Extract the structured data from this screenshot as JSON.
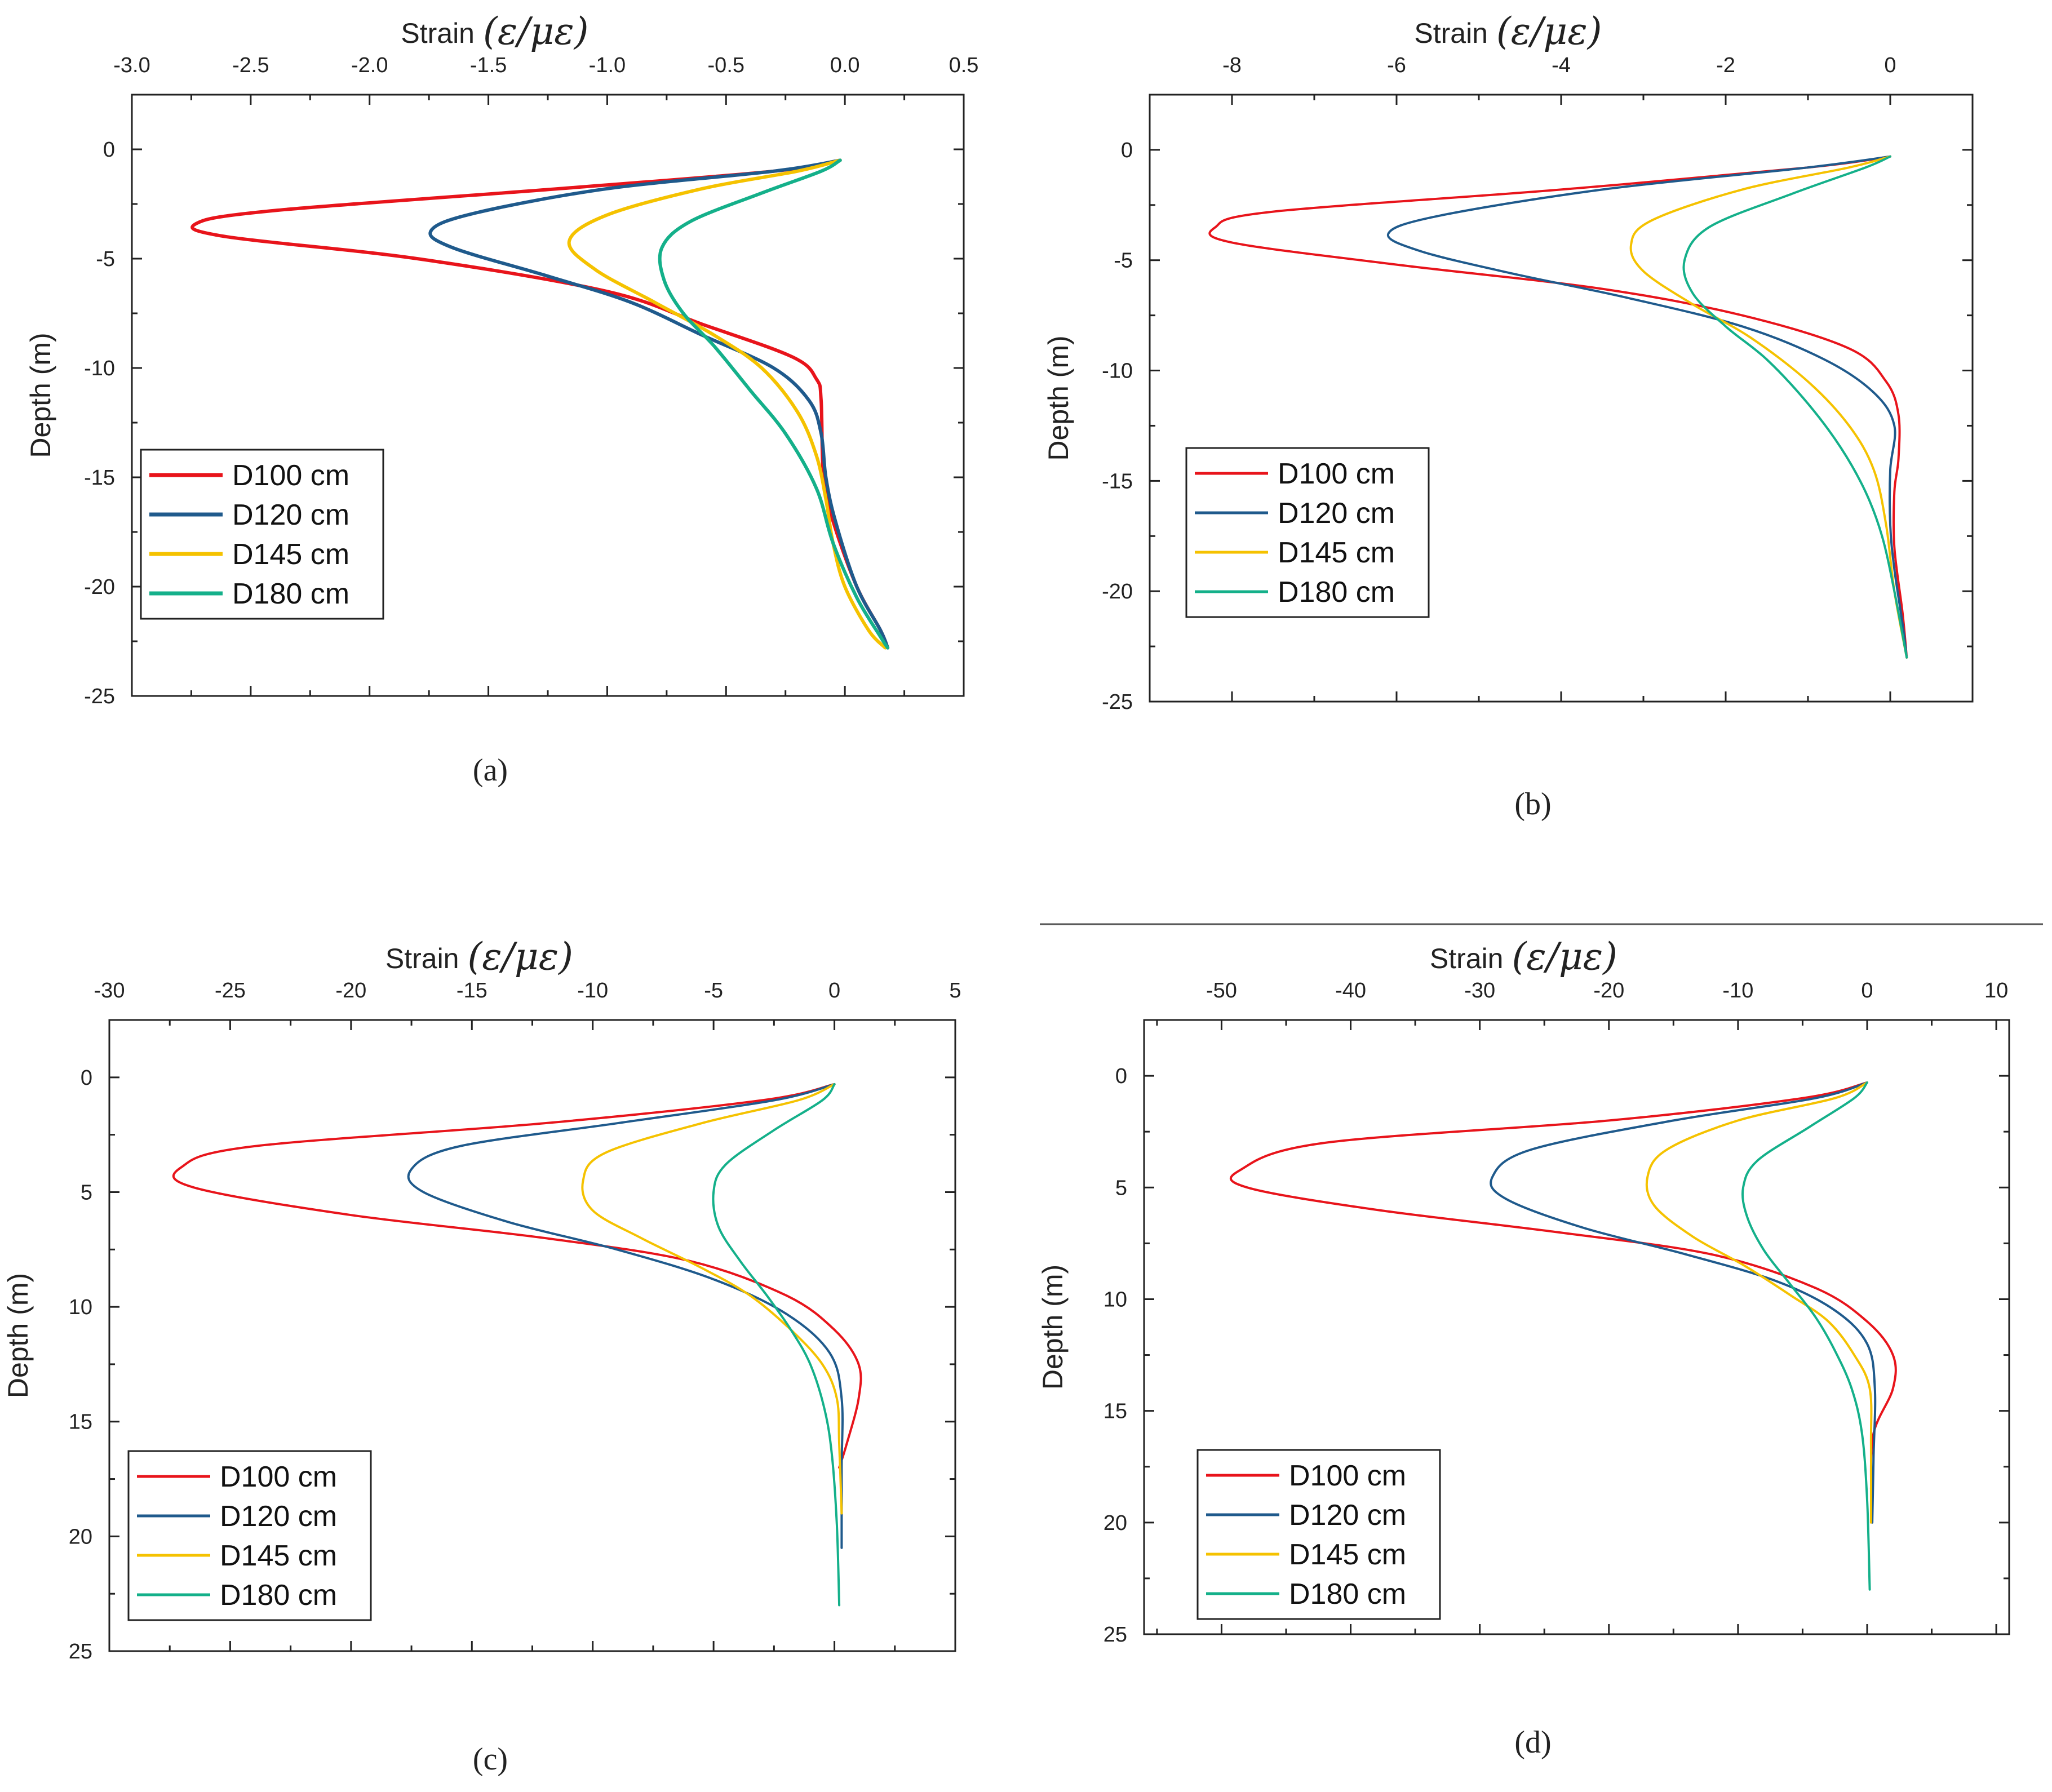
{
  "figure": {
    "separator": true
  },
  "chart_data": [
    {
      "id": "a",
      "type": "line",
      "caption": "(a)",
      "xlabel": "Strain",
      "xlabel_math": "(ε/μ_ε)",
      "xlabel_math_display": "(ε/με)",
      "ylabel": "Depth (m)",
      "xlim": [
        -3.0,
        0.5
      ],
      "ylim": [
        -25,
        2.5
      ],
      "y_inverted": false,
      "x_axis_position": "top",
      "xticks": [
        -3.0,
        -2.5,
        -2.0,
        -1.5,
        -1.0,
        -0.5,
        0.0,
        0.5
      ],
      "xtick_labels": [
        "-3.0",
        "-2.5",
        "-2.0",
        "-1.5",
        "-1.0",
        "-0.5",
        "0.0",
        "0.5"
      ],
      "yticks": [
        0,
        -5,
        -10,
        -15,
        -20,
        -25
      ],
      "ytick_labels": [
        "0",
        "-5",
        "-10",
        "-15",
        "-20",
        "-25"
      ],
      "grid": false,
      "legend_position": "bottom-left",
      "series": [
        {
          "name": "D100 cm",
          "color": "#e8141b",
          "x": [
            -0.02,
            -0.3,
            -1.2,
            -2.4,
            -2.73,
            -2.6,
            -1.8,
            -1.0,
            -0.6,
            -0.22,
            -0.12,
            -0.1,
            -0.09,
            -0.05,
            0.05,
            0.15,
            0.18
          ],
          "y": [
            -0.5,
            -1.0,
            -1.8,
            -2.8,
            -3.4,
            -4.0,
            -5.0,
            -6.5,
            -8.0,
            -9.5,
            -10.5,
            -11.5,
            -15.0,
            -17.0,
            -20.0,
            -22.0,
            -22.8
          ]
        },
        {
          "name": "D120 cm",
          "color": "#1f5a8c",
          "x": [
            -0.02,
            -0.3,
            -1.0,
            -1.55,
            -1.74,
            -1.65,
            -1.25,
            -0.9,
            -0.6,
            -0.3,
            -0.15,
            -0.1,
            -0.08,
            -0.04,
            0.05,
            0.15,
            0.18
          ],
          "y": [
            -0.5,
            -1.0,
            -1.8,
            -2.9,
            -3.7,
            -4.5,
            -5.8,
            -7.0,
            -8.5,
            -10.0,
            -11.5,
            -13.0,
            -15.0,
            -17.0,
            -20.0,
            -22.0,
            -22.8
          ]
        },
        {
          "name": "D145 cm",
          "color": "#f5c200",
          "x": [
            -0.02,
            -0.2,
            -0.6,
            -1.0,
            -1.16,
            -1.05,
            -0.8,
            -0.55,
            -0.35,
            -0.2,
            -0.12,
            -0.08,
            -0.05,
            0.0,
            0.1,
            0.17
          ],
          "y": [
            -0.5,
            -1.0,
            -1.8,
            -3.0,
            -4.2,
            -5.5,
            -7.0,
            -8.5,
            -10.0,
            -12.0,
            -14.0,
            -16.0,
            -18.0,
            -20.0,
            -22.0,
            -22.8
          ]
        },
        {
          "name": "D180 cm",
          "color": "#14b08a",
          "x": [
            -0.02,
            -0.1,
            -0.35,
            -0.65,
            -0.77,
            -0.76,
            -0.68,
            -0.55,
            -0.4,
            -0.25,
            -0.12,
            -0.05,
            0.05,
            0.15,
            0.18
          ],
          "y": [
            -0.5,
            -1.0,
            -2.0,
            -3.3,
            -4.5,
            -6.0,
            -7.5,
            -9.0,
            -11.0,
            -13.0,
            -15.5,
            -18.0,
            -20.5,
            -22.3,
            -22.8
          ]
        }
      ]
    },
    {
      "id": "b",
      "type": "line",
      "caption": "(b)",
      "xlabel": "Strain",
      "xlabel_math": "(ε/μ_ε)",
      "xlabel_math_display": "(ε/με)",
      "ylabel": "Depth (m)",
      "xlim": [
        -9.0,
        1.0
      ],
      "ylim": [
        -25,
        2.5
      ],
      "y_inverted": false,
      "x_axis_position": "top",
      "xticks": [
        -8,
        -6,
        -4,
        -2,
        0
      ],
      "xtick_labels": [
        "-8",
        "-6",
        "-4",
        "-2",
        "0"
      ],
      "yticks": [
        0,
        -5,
        -10,
        -15,
        -20,
        -25
      ],
      "ytick_labels": [
        "0",
        "-5",
        "-10",
        "-15",
        "-20",
        "-25"
      ],
      "grid": false,
      "legend_position": "bottom-left",
      "series": [
        {
          "name": "D100 cm",
          "color": "#e8141b",
          "x": [
            0.0,
            -1.0,
            -4.0,
            -7.5,
            -8.2,
            -8.0,
            -6.0,
            -3.5,
            -1.8,
            -0.5,
            -0.05,
            0.1,
            0.1,
            0.05,
            0.05,
            0.15,
            0.2
          ],
          "y": [
            -0.3,
            -0.8,
            -1.8,
            -2.8,
            -3.5,
            -4.2,
            -5.2,
            -6.3,
            -7.5,
            -9.0,
            -10.5,
            -12.0,
            -14.0,
            -15.5,
            -18.0,
            -21.0,
            -23.0
          ]
        },
        {
          "name": "D120 cm",
          "color": "#1f5a8c",
          "x": [
            0.0,
            -1.0,
            -3.5,
            -5.5,
            -6.1,
            -5.7,
            -4.6,
            -3.2,
            -1.8,
            -0.8,
            -0.2,
            0.05,
            0.0,
            0.0,
            0.05,
            0.15,
            0.2
          ],
          "y": [
            -0.3,
            -0.8,
            -1.8,
            -3.0,
            -3.8,
            -4.6,
            -5.6,
            -6.7,
            -8.0,
            -9.5,
            -11.0,
            -12.5,
            -14.5,
            -17.0,
            -19.0,
            -21.5,
            -23.0
          ]
        },
        {
          "name": "D145 cm",
          "color": "#f5c200",
          "x": [
            0.0,
            -0.5,
            -1.8,
            -2.9,
            -3.15,
            -3.0,
            -2.4,
            -1.7,
            -1.0,
            -0.5,
            -0.2,
            -0.05,
            0.05,
            0.2
          ],
          "y": [
            -0.3,
            -0.8,
            -1.8,
            -3.2,
            -4.3,
            -5.5,
            -7.0,
            -8.5,
            -10.5,
            -12.5,
            -14.5,
            -17.0,
            -20.0,
            -23.0
          ]
        },
        {
          "name": "D180 cm",
          "color": "#14b08a",
          "x": [
            0.0,
            -0.3,
            -1.2,
            -2.2,
            -2.5,
            -2.4,
            -2.0,
            -1.5,
            -1.0,
            -0.6,
            -0.3,
            -0.1,
            0.05,
            0.2
          ],
          "y": [
            -0.3,
            -0.8,
            -2.0,
            -3.5,
            -5.0,
            -6.5,
            -8.0,
            -9.5,
            -11.5,
            -13.5,
            -15.5,
            -17.5,
            -20.0,
            -23.0
          ]
        }
      ]
    },
    {
      "id": "c",
      "type": "line",
      "caption": "(c)",
      "xlabel": "Strain",
      "xlabel_math": "(ε/μ_ε)",
      "xlabel_math_display": "(ε/με)",
      "ylabel": "Depth (m)",
      "xlim": [
        -30,
        5
      ],
      "ylim": [
        25,
        -2.5
      ],
      "y_inverted": true,
      "x_axis_position": "top",
      "xticks": [
        -30,
        -25,
        -20,
        -15,
        -10,
        -5,
        0,
        5
      ],
      "xtick_labels": [
        "-30",
        "-25",
        "-20",
        "-15",
        "-10",
        "-5",
        "0",
        "5"
      ],
      "yticks": [
        0,
        5,
        10,
        15,
        20,
        25
      ],
      "ytick_labels": [
        "0",
        "5",
        "10",
        "15",
        "20",
        "25"
      ],
      "grid": false,
      "legend_position": "bottom-left",
      "series": [
        {
          "name": "D100 cm",
          "color": "#e8141b",
          "x": [
            0.0,
            -3.0,
            -12.0,
            -24.0,
            -27.0,
            -26.5,
            -20.0,
            -12.0,
            -6.0,
            -2.0,
            0.0,
            1.0,
            1.0,
            0.5,
            0.2
          ],
          "y": [
            0.3,
            1.0,
            2.0,
            3.0,
            3.9,
            4.8,
            6.0,
            7.0,
            8.0,
            9.5,
            11.0,
            12.5,
            14.0,
            16.0,
            17.0
          ]
        },
        {
          "name": "D120 cm",
          "color": "#1f5a8c",
          "x": [
            0.0,
            -2.5,
            -9.0,
            -15.5,
            -17.5,
            -17.0,
            -13.5,
            -9.0,
            -5.0,
            -2.0,
            -0.2,
            0.3,
            0.3,
            0.3
          ],
          "y": [
            0.3,
            1.0,
            2.0,
            3.0,
            4.0,
            5.0,
            6.3,
            7.5,
            8.8,
            10.3,
            12.0,
            14.0,
            17.0,
            20.5
          ]
        },
        {
          "name": "D145 cm",
          "color": "#f5c200",
          "x": [
            0.0,
            -1.5,
            -5.5,
            -9.5,
            -10.4,
            -10.0,
            -8.0,
            -5.5,
            -3.5,
            -1.8,
            -0.5,
            0.1,
            0.2,
            0.3
          ],
          "y": [
            0.3,
            1.0,
            2.0,
            3.3,
            4.5,
            5.8,
            7.0,
            8.3,
            9.5,
            11.0,
            12.5,
            14.0,
            16.0,
            19.0
          ]
        },
        {
          "name": "D180 cm",
          "color": "#14b08a",
          "x": [
            0.0,
            -0.5,
            -2.5,
            -4.5,
            -5.0,
            -4.8,
            -3.9,
            -2.8,
            -1.8,
            -1.0,
            -0.4,
            -0.1,
            0.1,
            0.2
          ],
          "y": [
            0.3,
            1.0,
            2.3,
            3.8,
            5.0,
            6.5,
            8.0,
            9.5,
            11.0,
            12.5,
            14.5,
            16.5,
            19.5,
            23.0
          ]
        }
      ]
    },
    {
      "id": "d",
      "type": "line",
      "caption": "(d)",
      "xlabel": "Strain",
      "xlabel_math": "(ε/μ_ε)",
      "xlabel_math_display": "(ε/με)",
      "ylabel": "Depth (m)",
      "xlim": [
        -56,
        11
      ],
      "ylim": [
        25,
        -2.5
      ],
      "y_inverted": true,
      "x_axis_position": "top",
      "xticks": [
        -50,
        -40,
        -30,
        -20,
        -10,
        0,
        10
      ],
      "xtick_labels": [
        "-50",
        "-40",
        "-30",
        "-20",
        "-10",
        "0",
        "10"
      ],
      "yticks": [
        0,
        5,
        10,
        15,
        20,
        25
      ],
      "ytick_labels": [
        "0",
        "5",
        "10",
        "15",
        "20",
        "25"
      ],
      "grid": false,
      "legend_position": "bottom-left",
      "series": [
        {
          "name": "D100 cm",
          "color": "#e8141b",
          "x": [
            0.0,
            -5.0,
            -20.0,
            -42.0,
            -48.5,
            -48.0,
            -38.0,
            -24.0,
            -12.0,
            -4.0,
            0.0,
            2.0,
            2.0,
            0.5,
            0.3
          ],
          "y": [
            0.3,
            1.0,
            2.0,
            3.0,
            4.2,
            5.0,
            6.0,
            7.0,
            8.0,
            9.5,
            11.0,
            12.5,
            14.0,
            16.0,
            18.5
          ]
        },
        {
          "name": "D120 cm",
          "color": "#1f5a8c",
          "x": [
            0.0,
            -4.0,
            -15.0,
            -26.0,
            -29.0,
            -28.0,
            -22.0,
            -14.0,
            -7.0,
            -2.5,
            0.0,
            0.6,
            0.5,
            0.4
          ],
          "y": [
            0.3,
            1.0,
            2.0,
            3.3,
            4.5,
            5.5,
            6.8,
            8.0,
            9.2,
            10.5,
            12.0,
            14.0,
            17.0,
            20.0
          ]
        },
        {
          "name": "D145 cm",
          "color": "#f5c200",
          "x": [
            0.0,
            -2.5,
            -10.0,
            -15.5,
            -17.0,
            -16.5,
            -13.5,
            -9.5,
            -6.0,
            -3.0,
            -1.0,
            0.2,
            0.3,
            0.3
          ],
          "y": [
            0.3,
            1.0,
            2.0,
            3.3,
            4.5,
            5.8,
            7.2,
            8.5,
            9.8,
            11.0,
            12.5,
            14.0,
            16.5,
            20.0
          ]
        },
        {
          "name": "D180 cm",
          "color": "#14b08a",
          "x": [
            0.0,
            -1.0,
            -4.5,
            -8.5,
            -9.6,
            -9.3,
            -8.0,
            -6.0,
            -4.0,
            -2.5,
            -1.2,
            -0.4,
            0.0,
            0.2
          ],
          "y": [
            0.3,
            1.0,
            2.3,
            3.8,
            5.0,
            6.3,
            7.8,
            9.3,
            10.8,
            12.3,
            14.0,
            16.0,
            19.0,
            23.0
          ]
        }
      ]
    }
  ]
}
